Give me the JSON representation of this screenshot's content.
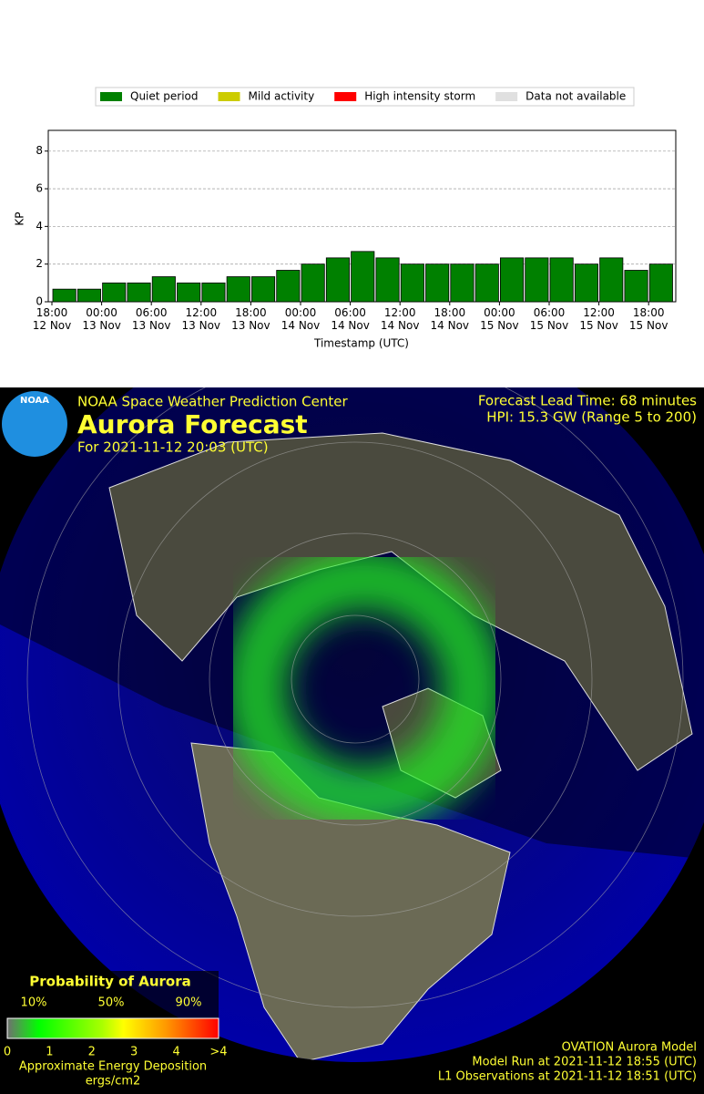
{
  "chart_data": {
    "type": "bar",
    "xlabel": "Timestamp (UTC)",
    "ylabel": "KP",
    "categories": [
      "18:00\n12 Nov",
      null,
      "00:00\n13 Nov",
      null,
      "06:00\n13 Nov",
      null,
      "12:00\n13 Nov",
      null,
      "18:00\n13 Nov",
      null,
      "00:00\n14 Nov",
      null,
      "06:00\n14 Nov",
      null,
      "12:00\n14 Nov",
      null,
      "18:00\n14 Nov",
      null,
      "00:00\n15 Nov",
      null,
      "06:00\n15 Nov",
      null,
      "12:00\n15 Nov",
      null,
      "18:00\n15 Nov"
    ],
    "values": [
      0.67,
      0.67,
      1,
      1,
      1.33,
      1,
      1,
      1.33,
      1.33,
      1.67,
      2,
      2.33,
      2.67,
      2.33,
      2,
      2,
      2,
      2,
      2.33,
      2.33,
      2.33,
      2,
      2.33,
      1.67,
      2
    ],
    "color": "#008000",
    "legend": [
      {
        "name": "Quiet period",
        "color": "#008000"
      },
      {
        "name": "Mild activity",
        "color": "#cccc00"
      },
      {
        "name": "High intensity storm",
        "color": "#ff0000"
      },
      {
        "name": "Data not available",
        "color": "#e0e0e0"
      }
    ],
    "ylim": [
      0,
      9.1
    ],
    "yticks": [
      0,
      2,
      4,
      6,
      8
    ],
    "grid": true
  },
  "aurora_map": {
    "logo": "NOAA",
    "center": "NOAA Space Weather Prediction Center",
    "title": "Aurora Forecast",
    "time": "For 2021-11-12 20:03 (UTC)",
    "lead_time": "Forecast Lead Time:  68 minutes",
    "hpi": "HPI:  15.3 GW (Range 5 to 200)",
    "colorbar_title": "Probability of Aurora",
    "percent_labels": [
      "10%",
      "50%",
      "90%"
    ],
    "energy_labels": [
      "0",
      "1",
      "2",
      "3",
      "4",
      ">4"
    ],
    "energy_title": "Approximate Energy Deposition",
    "energy_unit": "ergs/cm2",
    "model": "OVATION Aurora Model",
    "model_run": "Model Run at 2021-11-12 18:55 (UTC)",
    "l1": "L1 Observations at 2021-11-12 18:51 (UTC)"
  }
}
